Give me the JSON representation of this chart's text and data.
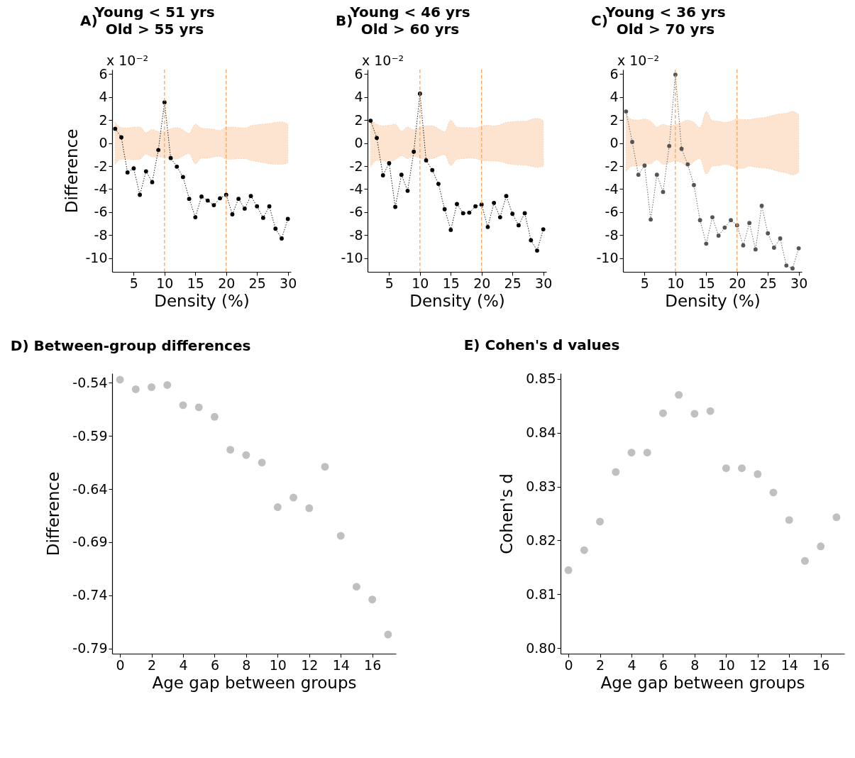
{
  "chart_data": [
    {
      "type": "line",
      "title": "A)",
      "subtitle": "Young < 51 yrs\nOld > 55 yrs",
      "xlabel": "Density (%)",
      "ylabel": "Difference",
      "annotations": [
        "x 10⁻²"
      ],
      "x": [
        2,
        3,
        4,
        5,
        6,
        7,
        8,
        9,
        10,
        11,
        12,
        13,
        14,
        15,
        16,
        17,
        18,
        19,
        20,
        21,
        22,
        23,
        24,
        25,
        26,
        27,
        28,
        29,
        30
      ],
      "xlim": [
        1.5,
        30.5
      ],
      "xticks": [
        5,
        10,
        15,
        20,
        25,
        30
      ],
      "ylim": [
        -11.2,
        6.4
      ],
      "yticks": [
        6,
        4,
        2,
        0,
        -2,
        -4,
        -6,
        -8,
        -10
      ],
      "grid": false,
      "marker": "circle",
      "line_style": "dotted",
      "series": [
        {
          "color": "#000000",
          "values": [
            1.25,
            0.5,
            -2.55,
            -2.2,
            -4.5,
            -2.45,
            -3.4,
            -0.6,
            3.55,
            -1.3,
            -2.05,
            -2.95,
            -4.85,
            -6.45,
            -4.65,
            -5.0,
            -5.4,
            -4.8,
            -4.5,
            -6.2,
            -4.85,
            -5.7,
            -4.6,
            -5.5,
            -6.5,
            -5.5,
            -7.45,
            -8.3,
            -6.6
          ],
          "upper": [
            1.8,
            1.35,
            1.3,
            1.4,
            1.4,
            0.9,
            1.2,
            1.0,
            1.05,
            1.25,
            1.35,
            1.15,
            0.85,
            1.65,
            1.3,
            1.25,
            1.2,
            1.1,
            1.4,
            1.4,
            1.35,
            1.3,
            1.5,
            1.6,
            1.65,
            1.7,
            1.8,
            1.85,
            1.65
          ],
          "lower": [
            -1.85,
            -1.4,
            -1.4,
            -1.45,
            -1.4,
            -0.95,
            -1.2,
            -1.2,
            -1.25,
            -1.3,
            -1.4,
            -1.1,
            -0.9,
            -1.8,
            -1.3,
            -1.3,
            -1.2,
            -1.15,
            -1.4,
            -1.4,
            -1.35,
            -1.35,
            -1.5,
            -1.6,
            -1.7,
            -1.8,
            -1.85,
            -1.85,
            -1.7
          ]
        }
      ],
      "ref_lines": [
        {
          "axis": "x",
          "value": 10,
          "color": "#f5a05a",
          "line_style": "dashed"
        },
        {
          "axis": "x",
          "value": 20,
          "color": "#f5a05a",
          "line_style": "dashed"
        }
      ]
    },
    {
      "type": "line",
      "title": "B)",
      "subtitle": "Young < 46 yrs\nOld > 60 yrs",
      "xlabel": "Density (%)",
      "annotations": [
        "x 10⁻²"
      ],
      "x": [
        2,
        3,
        4,
        5,
        6,
        7,
        8,
        9,
        10,
        11,
        12,
        13,
        14,
        15,
        16,
        17,
        18,
        19,
        20,
        21,
        22,
        23,
        24,
        25,
        26,
        27,
        28,
        29,
        30
      ],
      "xlim": [
        1.5,
        30.5
      ],
      "xticks": [
        5,
        10,
        15,
        20,
        25,
        30
      ],
      "ylim": [
        -11.2,
        6.4
      ],
      "yticks": [
        6,
        4,
        2,
        0,
        -2,
        -4,
        -6,
        -8,
        -10
      ],
      "grid": false,
      "marker": "circle",
      "line_style": "dotted",
      "series": [
        {
          "color": "#000000",
          "values": [
            1.95,
            0.45,
            -2.8,
            -1.75,
            -5.55,
            -2.75,
            -4.15,
            -0.75,
            4.3,
            -1.5,
            -2.35,
            -3.55,
            -5.75,
            -7.55,
            -5.3,
            -6.1,
            -6.05,
            -5.5,
            -5.35,
            -7.3,
            -5.2,
            -6.45,
            -4.6,
            -6.15,
            -7.15,
            -6.1,
            -8.45,
            -9.35,
            -7.5
          ],
          "upper": [
            1.95,
            1.65,
            1.5,
            1.55,
            1.65,
            1.05,
            1.4,
            1.15,
            1.35,
            1.5,
            1.5,
            1.25,
            1.0,
            2.0,
            1.4,
            1.35,
            1.35,
            1.3,
            1.5,
            1.55,
            1.5,
            1.6,
            1.8,
            1.85,
            1.9,
            1.9,
            2.05,
            2.15,
            1.95
          ],
          "lower": [
            -2.05,
            -1.5,
            -1.55,
            -1.6,
            -1.45,
            -1.1,
            -1.35,
            -1.15,
            -1.3,
            -1.4,
            -1.35,
            -1.15,
            -1.0,
            -1.95,
            -1.4,
            -1.35,
            -1.3,
            -1.35,
            -1.5,
            -1.55,
            -1.55,
            -1.6,
            -1.75,
            -1.85,
            -1.9,
            -1.9,
            -2.0,
            -2.1,
            -2.0
          ]
        }
      ],
      "ref_lines": [
        {
          "axis": "x",
          "value": 10,
          "color": "#f5a05a",
          "line_style": "dashed"
        },
        {
          "axis": "x",
          "value": 20,
          "color": "#f5a05a",
          "line_style": "dashed"
        }
      ]
    },
    {
      "type": "line",
      "title": "C)",
      "subtitle": "Young < 36 yrs\nOld > 70 yrs",
      "xlabel": "Density (%)",
      "annotations": [
        "x 10⁻²"
      ],
      "x": [
        2,
        3,
        4,
        5,
        6,
        7,
        8,
        9,
        10,
        11,
        12,
        13,
        14,
        15,
        16,
        17,
        18,
        19,
        20,
        21,
        22,
        23,
        24,
        25,
        26,
        27,
        28,
        29,
        30
      ],
      "xlim": [
        1.5,
        30.5
      ],
      "xticks": [
        5,
        10,
        15,
        20,
        25,
        30
      ],
      "ylim": [
        -11.2,
        6.4
      ],
      "yticks": [
        6,
        4,
        2,
        0,
        -2,
        -4,
        -6,
        -8,
        -10
      ],
      "grid": false,
      "marker": "circle",
      "line_style": "dotted",
      "series": [
        {
          "color": "#555555",
          "values": [
            2.75,
            0.1,
            -2.75,
            -1.95,
            -6.65,
            -2.75,
            -4.25,
            -0.25,
            5.95,
            -0.5,
            -1.85,
            -3.65,
            -6.7,
            -8.75,
            -6.45,
            -8.05,
            -7.35,
            -6.7,
            -7.15,
            -8.9,
            -6.95,
            -9.25,
            -5.45,
            -7.85,
            -9.1,
            -8.3,
            -10.65,
            -10.9,
            -9.15
          ],
          "upper": [
            2.5,
            2.05,
            2.0,
            2.1,
            1.9,
            1.4,
            1.65,
            1.5,
            1.6,
            1.8,
            2.0,
            1.8,
            1.35,
            2.75,
            1.95,
            1.9,
            1.8,
            1.9,
            2.1,
            2.05,
            2.05,
            2.15,
            2.2,
            2.3,
            2.45,
            2.55,
            2.6,
            2.75,
            2.5
          ],
          "lower": [
            -2.5,
            -2.0,
            -2.0,
            -1.85,
            -1.8,
            -1.45,
            -1.85,
            -1.7,
            -1.55,
            -1.7,
            -2.0,
            -1.6,
            -1.35,
            -2.7,
            -2.0,
            -1.95,
            -1.85,
            -1.95,
            -2.2,
            -2.2,
            -2.0,
            -2.1,
            -2.15,
            -2.2,
            -2.35,
            -2.5,
            -2.6,
            -2.75,
            -2.55
          ]
        }
      ],
      "ref_lines": [
        {
          "axis": "x",
          "value": 10,
          "color": "#f5a05a",
          "line_style": "dashed"
        },
        {
          "axis": "x",
          "value": 20,
          "color": "#f5a05a",
          "line_style": "dashed"
        }
      ]
    },
    {
      "type": "scatter",
      "title": "D) Between-group differences",
      "xlabel": "Age gap between groups",
      "ylabel": "Difference",
      "x": [
        0,
        1,
        2,
        3,
        4,
        5,
        6,
        7,
        8,
        9,
        10,
        11,
        12,
        13,
        14,
        15,
        16,
        17
      ],
      "xlim": [
        -0.5,
        17.5
      ],
      "xticks": [
        0,
        2,
        4,
        6,
        8,
        10,
        12,
        14,
        16
      ],
      "ylim": [
        -0.795,
        -0.531
      ],
      "yticks": [
        -0.54,
        -0.59,
        -0.64,
        -0.69,
        -0.74,
        -0.79
      ],
      "grid": false,
      "marker": "circle",
      "series": [
        {
          "color": "#c0c0c0",
          "values": [
            -0.537,
            -0.546,
            -0.544,
            -0.542,
            -0.561,
            -0.563,
            -0.572,
            -0.603,
            -0.608,
            -0.615,
            -0.657,
            -0.648,
            -0.658,
            -0.619,
            -0.684,
            -0.732,
            -0.744,
            -0.777
          ]
        }
      ]
    },
    {
      "type": "scatter",
      "title": "E) Cohen's d values",
      "xlabel": "Age gap between groups",
      "ylabel": "Cohen's d",
      "x": [
        0,
        1,
        2,
        3,
        4,
        5,
        6,
        7,
        8,
        9,
        10,
        11,
        12,
        13,
        14,
        15,
        16,
        17
      ],
      "xlim": [
        -0.5,
        17.5
      ],
      "xticks": [
        0,
        2,
        4,
        6,
        8,
        10,
        12,
        14,
        16
      ],
      "ylim": [
        0.799,
        0.851
      ],
      "yticks": [
        0.85,
        0.84,
        0.83,
        0.82,
        0.81,
        {
          "value": 0.8,
          "label": "0.80"
        }
      ],
      "grid": false,
      "marker": "circle",
      "series": [
        {
          "color": "#c0c0c0",
          "values": [
            0.8145,
            0.8182,
            0.8235,
            0.8327,
            0.8363,
            0.8363,
            0.8436,
            0.847,
            0.8435,
            0.844,
            0.8334,
            0.8334,
            0.8323,
            0.8289,
            0.8238,
            0.8162,
            0.8189,
            0.8243
          ]
        }
      ]
    }
  ]
}
